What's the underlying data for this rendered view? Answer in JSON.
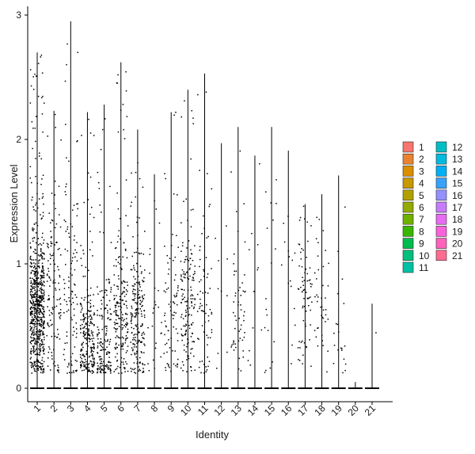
{
  "chart_data": {
    "type": "scatter",
    "title": "",
    "xlabel": "Identity",
    "ylabel": "Expression Level",
    "ylim": [
      -0.12,
      3.07
    ],
    "yticks": [
      0,
      1,
      2,
      3
    ],
    "grid": false,
    "legend_placement": "right",
    "categories": [
      "1",
      "2",
      "3",
      "4",
      "5",
      "6",
      "7",
      "8",
      "9",
      "10",
      "11",
      "12",
      "13",
      "14",
      "15",
      "16",
      "17",
      "18",
      "19",
      "20",
      "21"
    ],
    "colors": [
      "#F8766D",
      "#EA8331",
      "#DB8E00",
      "#C79800",
      "#B0A100",
      "#94AA00",
      "#6FB100",
      "#39B600",
      "#00BB4E",
      "#00BF7D",
      "#00C1A3",
      "#00BFC4",
      "#00BAE0",
      "#00B0F6",
      "#35A2FF",
      "#9590FF",
      "#C77CFF",
      "#E76BF3",
      "#FA62DB",
      "#FF62BC",
      "#FF6C91"
    ],
    "series": [
      {
        "category": "1",
        "max": 2.7,
        "n": 700,
        "center": 0.62,
        "spread": 0.28,
        "cap": 2.7
      },
      {
        "category": "2",
        "max": 2.23,
        "n": 130,
        "center": 0.7,
        "spread": 0.45,
        "cap": 2.23
      },
      {
        "category": "3",
        "max": 2.95,
        "n": 110,
        "center": 0.75,
        "spread": 0.5,
        "cap": 2.95
      },
      {
        "category": "4",
        "max": 2.22,
        "n": 240,
        "center": 0.35,
        "spread": 0.22,
        "cap": 2.22
      },
      {
        "category": "5",
        "max": 2.28,
        "n": 170,
        "center": 0.32,
        "spread": 0.28,
        "cap": 2.28
      },
      {
        "category": "6",
        "max": 2.62,
        "n": 200,
        "center": 0.55,
        "spread": 0.3,
        "cap": 2.62
      },
      {
        "category": "7",
        "max": 2.08,
        "n": 210,
        "center": 0.55,
        "spread": 0.3,
        "cap": 2.08
      },
      {
        "category": "8",
        "max": 1.72,
        "n": 25,
        "center": 0.55,
        "spread": 0.35,
        "cap": 1.72
      },
      {
        "category": "9",
        "max": 2.22,
        "n": 80,
        "center": 0.6,
        "spread": 0.35,
        "cap": 2.22
      },
      {
        "category": "10",
        "max": 2.4,
        "n": 160,
        "center": 0.65,
        "spread": 0.3,
        "cap": 2.4
      },
      {
        "category": "11",
        "max": 2.53,
        "n": 70,
        "center": 0.6,
        "spread": 0.4,
        "cap": 2.53
      },
      {
        "category": "12",
        "max": 1.97,
        "n": 10,
        "center": 0.7,
        "spread": 0.5,
        "cap": 1.97
      },
      {
        "category": "13",
        "max": 2.1,
        "n": 55,
        "center": 0.55,
        "spread": 0.25,
        "cap": 2.1
      },
      {
        "category": "14",
        "max": 1.87,
        "n": 12,
        "center": 0.9,
        "spread": 0.4,
        "cap": 1.87
      },
      {
        "category": "15",
        "max": 2.1,
        "n": 18,
        "center": 0.7,
        "spread": 0.5,
        "cap": 2.1
      },
      {
        "category": "16",
        "max": 1.91,
        "n": 15,
        "center": 0.6,
        "spread": 0.4,
        "cap": 1.91
      },
      {
        "category": "17",
        "max": 1.48,
        "n": 70,
        "center": 0.75,
        "spread": 0.28,
        "cap": 1.48
      },
      {
        "category": "18",
        "max": 1.56,
        "n": 40,
        "center": 0.55,
        "spread": 0.3,
        "cap": 1.56
      },
      {
        "category": "19",
        "max": 1.71,
        "n": 20,
        "center": 0.5,
        "spread": 0.25,
        "cap": 1.71
      },
      {
        "category": "20",
        "max": 0.05,
        "n": 0,
        "center": 0.0,
        "spread": 0.0,
        "cap": 0.05
      },
      {
        "category": "21",
        "max": 0.68,
        "n": 1,
        "center": 0.45,
        "spread": 0.05,
        "cap": 0.68
      }
    ]
  }
}
